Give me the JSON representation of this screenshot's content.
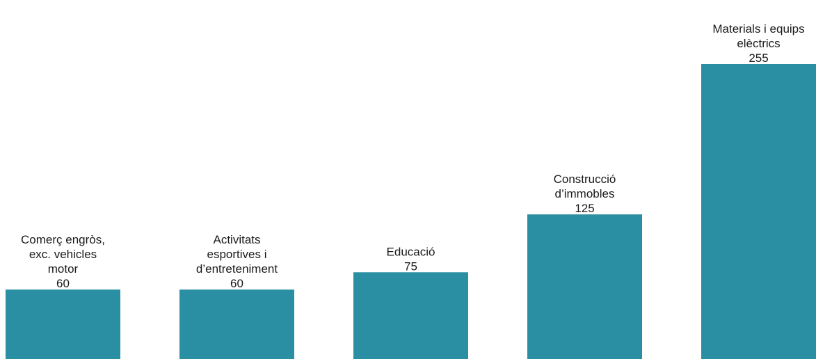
{
  "chart_data": {
    "type": "bar",
    "categories": [
      [
        "Comerç engròs,",
        "exc. vehicles",
        "motor"
      ],
      [
        "Activitats",
        "esportives i",
        "d’entreteniment"
      ],
      [
        "Educació"
      ],
      [
        "Construcció",
        "d’immobles"
      ],
      [
        "Materials i equips",
        "elèctrics"
      ]
    ],
    "values": [
      60,
      60,
      75,
      125,
      255
    ],
    "value_labels": [
      "60",
      "60",
      "75",
      "125",
      "255"
    ],
    "title": "",
    "xlabel": "",
    "ylabel": "",
    "ylim": [
      0,
      255
    ],
    "grid": false,
    "legend": "none",
    "bar_color": "#2a8fa3"
  }
}
